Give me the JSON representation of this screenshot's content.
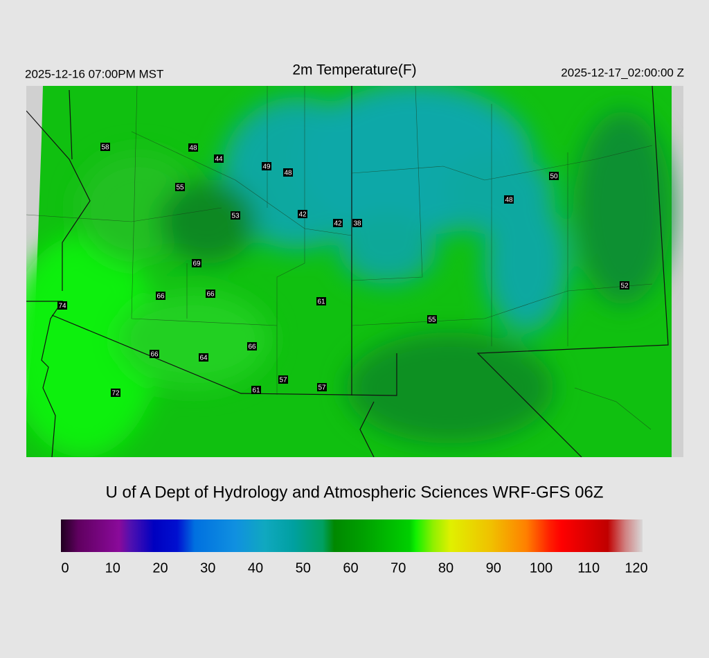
{
  "header": {
    "local_time": "2025-12-16 07:00PM MST",
    "title": "2m Temperature(F)",
    "utc_time": "2025-12-17_02:00:00 Z"
  },
  "stations": [
    58,
    48,
    44,
    49,
    48,
    55,
    53,
    42,
    42,
    38,
    69,
    66,
    66,
    61,
    74,
    55,
    50,
    48,
    52,
    66,
    66,
    64,
    57,
    61,
    57,
    72
  ],
  "footer": "U of A Dept of Hydrology and Atmospheric Sciences WRF-GFS 06Z",
  "colorbar": {
    "lim": [
      0,
      120
    ],
    "ticks": [
      0,
      10,
      20,
      30,
      40,
      50,
      60,
      70,
      80,
      90,
      100,
      110,
      120
    ]
  }
}
